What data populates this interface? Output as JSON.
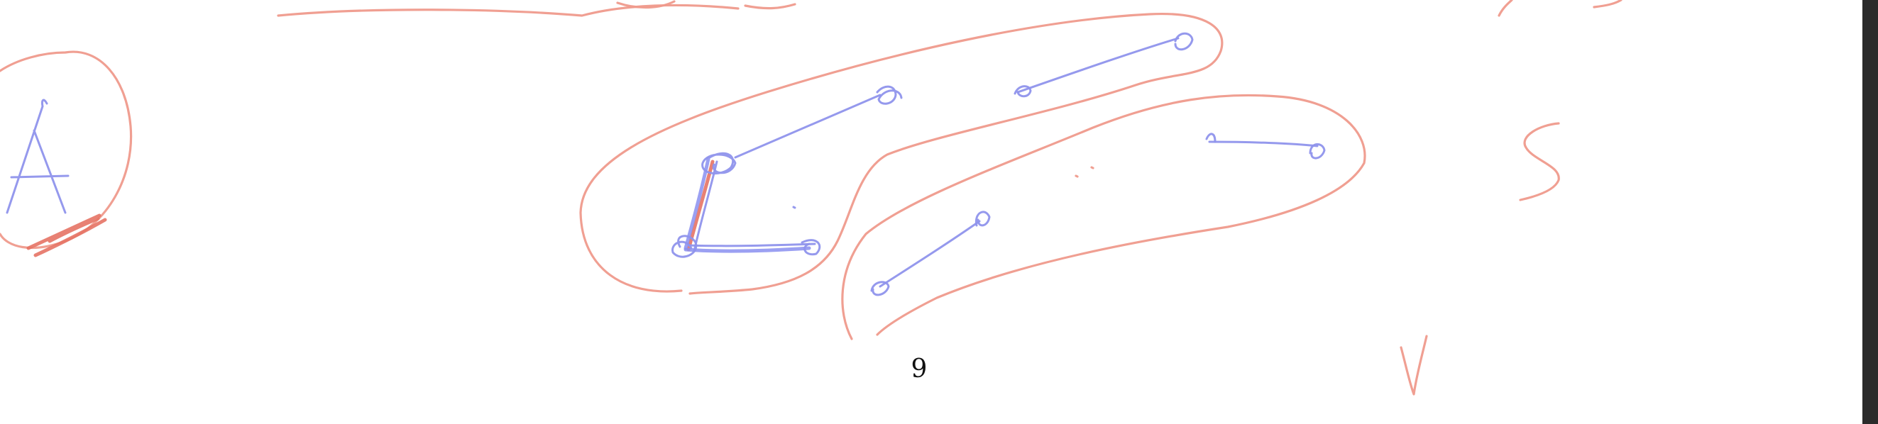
{
  "page": {
    "page_number": "9",
    "background": "#ffffff",
    "edge_color": "#2b2b2b"
  },
  "ink_colors": {
    "red": "#ef9a8c",
    "blue": "#8f93ec"
  }
}
